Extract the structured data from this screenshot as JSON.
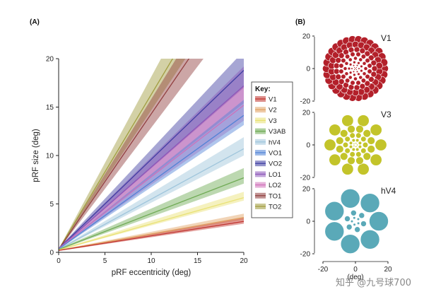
{
  "panels": {
    "a_label": "(A)",
    "b_label": "(B)"
  },
  "watermark": "知乎 @九号球700",
  "chart_data": [
    {
      "type": "line",
      "title": "",
      "xlabel": "pRF eccentricity (deg)",
      "ylabel": "pRF size (deg)",
      "xlim": [
        0,
        20
      ],
      "ylim": [
        0,
        20
      ],
      "xticks": [
        0,
        5,
        10,
        15,
        20
      ],
      "yticks": [
        0,
        5,
        10,
        15,
        20
      ],
      "grid": false,
      "legend_title": "Key:",
      "legend_position": "right",
      "series": [
        {
          "name": "V1",
          "color": "#c0312b",
          "intercept": 0.2,
          "slope": 0.15,
          "band": [
            0.02,
            0.012
          ]
        },
        {
          "name": "V2",
          "color": "#e0a060",
          "intercept": 0.2,
          "slope": 0.17,
          "band": [
            0.02,
            0.012
          ]
        },
        {
          "name": "V3",
          "color": "#e8e070",
          "intercept": 0.25,
          "slope": 0.27,
          "band": [
            0.03,
            0.015
          ]
        },
        {
          "name": "V3AB",
          "color": "#6aa84f",
          "intercept": 0.3,
          "slope": 0.37,
          "band": [
            0.05,
            0.03
          ]
        },
        {
          "name": "hV4",
          "color": "#9cc3da",
          "intercept": 0.3,
          "slope": 0.52,
          "band": [
            0.06,
            0.035
          ]
        },
        {
          "name": "VO1",
          "color": "#4f81d6",
          "intercept": 0.35,
          "slope": 0.69,
          "band": [
            0.08,
            0.05
          ]
        },
        {
          "name": "VO2",
          "color": "#3b3aa0",
          "intercept": 0.4,
          "slope": 0.92,
          "band": [
            0.1,
            0.09
          ]
        },
        {
          "name": "LO1",
          "color": "#8a54b8",
          "intercept": 0.4,
          "slope": 0.84,
          "band": [
            0.1,
            0.09
          ]
        },
        {
          "name": "LO2",
          "color": "#cf6fb8",
          "intercept": 0.4,
          "slope": 0.74,
          "band": [
            0.1,
            0.08
          ]
        },
        {
          "name": "TO1",
          "color": "#8e3a3a",
          "intercept": 0.3,
          "slope": 1.4,
          "band": [
            0.15,
            0.14
          ]
        },
        {
          "name": "TO2",
          "color": "#9e9a3a",
          "intercept": 0.3,
          "slope": 1.6,
          "band": [
            0.18,
            0.16
          ]
        }
      ]
    },
    {
      "type": "scatter",
      "title": "V1",
      "xlim": [
        -20,
        20
      ],
      "ylim": [
        -20,
        20
      ],
      "yticks": [
        -20,
        0,
        20
      ],
      "color": "#b3202a",
      "description_kind": "pRF coverage circles"
    },
    {
      "type": "scatter",
      "title": "V3",
      "xlim": [
        -20,
        20
      ],
      "ylim": [
        -20,
        20
      ],
      "yticks": [
        -20,
        0,
        20
      ],
      "color": "#c3c42a",
      "description_kind": "pRF coverage circles"
    },
    {
      "type": "scatter",
      "title": "hV4",
      "xlabel": "(deg)",
      "xlim": [
        -20,
        20
      ],
      "ylim": [
        -20,
        20
      ],
      "xticks": [
        -20,
        0,
        20
      ],
      "yticks": [
        -20,
        0,
        20
      ],
      "color": "#5aa9b8",
      "description_kind": "pRF coverage circles"
    }
  ]
}
